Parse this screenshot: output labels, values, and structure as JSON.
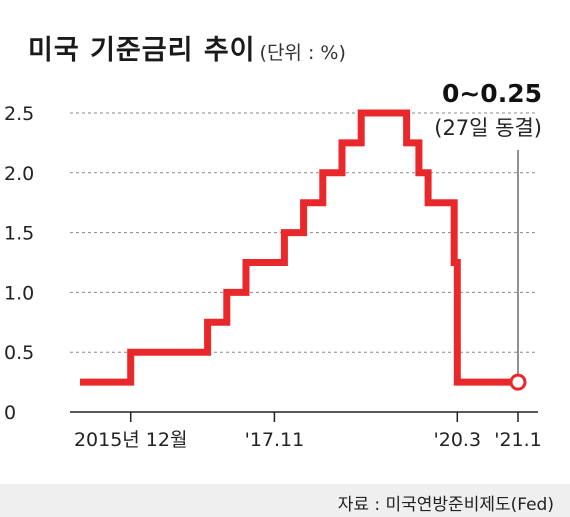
{
  "title": "미국 기준금리 추이",
  "unit": "(단위 : %)",
  "source": "자료 : 미국연방준비제도(Fed)",
  "colors": {
    "line": "#e8282b",
    "grid": "#8a8a8a",
    "axis": "#222222",
    "text": "#222222",
    "footer_bg": "#efefef"
  },
  "chart_data": {
    "type": "line",
    "step": true,
    "ylim": [
      0,
      2.5
    ],
    "yticks": [
      "0",
      "0.5",
      "1.0",
      "1.5",
      "2.0",
      "2.5"
    ],
    "ytick_values": [
      0,
      0.5,
      1.0,
      1.5,
      2.0,
      2.5
    ],
    "xtick_labels": [
      "2015년 12월",
      "'17.11",
      "'20.3",
      "'21.1"
    ],
    "xtick_values": [
      2015.96,
      2017.83,
      2020.21,
      2021.0
    ],
    "x_range": [
      2015.3,
      2021.0
    ],
    "grid": "horizontal dashed",
    "series": [
      {
        "values_x": [
          2015.3,
          2015.96,
          2015.96,
          2016.96,
          2016.96,
          2017.21,
          2017.21,
          2017.46,
          2017.46,
          2017.96,
          2017.96,
          2018.21,
          2018.21,
          2018.46,
          2018.46,
          2018.71,
          2018.71,
          2018.96,
          2018.96,
          2019.55,
          2019.55,
          2019.71,
          2019.71,
          2019.83,
          2019.83,
          2020.17,
          2020.17,
          2020.21,
          2020.21,
          2021.0
        ],
        "values_y": [
          0.25,
          0.25,
          0.5,
          0.5,
          0.75,
          0.75,
          1.0,
          1.0,
          1.25,
          1.25,
          1.5,
          1.5,
          1.75,
          1.75,
          2.0,
          2.0,
          2.25,
          2.25,
          2.5,
          2.5,
          2.25,
          2.25,
          2.0,
          2.0,
          1.75,
          1.75,
          1.25,
          1.25,
          0.25,
          0.25
        ]
      }
    ],
    "annotation": {
      "value": "0~0.25",
      "note": "(27일 동결)",
      "x": 2021.0,
      "y": 0.25
    }
  }
}
